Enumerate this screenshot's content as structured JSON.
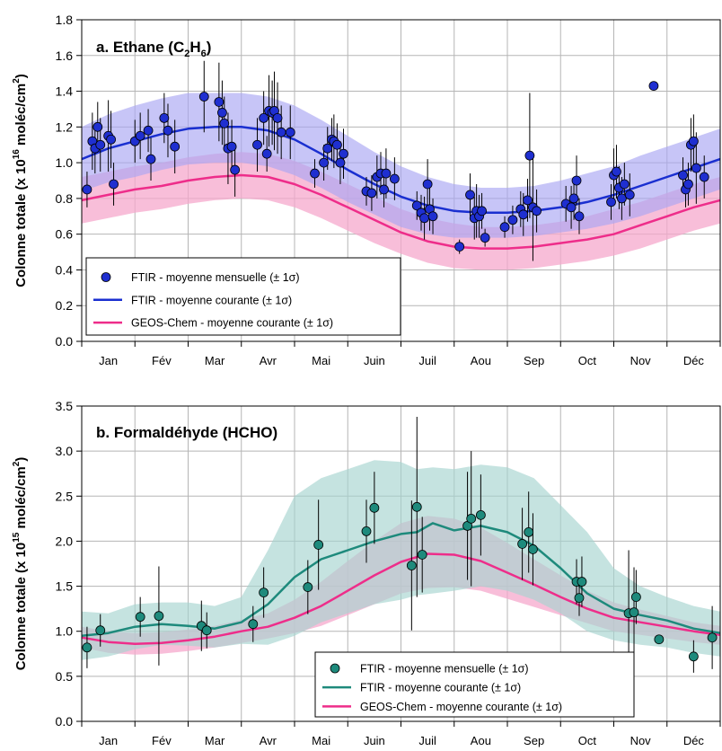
{
  "chart_data": [
    {
      "type": "line",
      "title_main": "a. Ethane (C",
      "title_sub1": "2",
      "title_mid": "H",
      "title_sub2": "6",
      "title_end": ")",
      "ylabel_a": "Colonne totale (x 10",
      "ylabel_exp": "16",
      "ylabel_b": " moléc/cm",
      "ylabel_sq": "2",
      "ylabel_c": ")",
      "ylim": [
        0,
        1.8
      ],
      "yticks": [
        "0.0",
        "0.2",
        "0.4",
        "0.6",
        "0.8",
        "1.0",
        "1.2",
        "1.4",
        "1.6",
        "1.8"
      ],
      "ytick_values": [
        0,
        0.2,
        0.4,
        0.6,
        0.8,
        1.0,
        1.2,
        1.4,
        1.6,
        1.8
      ],
      "months": [
        "Jan",
        "Fév",
        "Mar",
        "Avr",
        "Mai",
        "Juin",
        "Juil",
        "Aou",
        "Sep",
        "Oct",
        "Nov",
        "Déc"
      ],
      "legend_position": "bottom-left",
      "legend": {
        "points": "FTIR - moyenne mensuelle (± 1σ)",
        "ftir_line": "FTIR - moyenne courante (± 1σ)",
        "geos_line": "GEOS-Chem - moyenne courante (± 1σ)"
      },
      "colors": {
        "points": "#1f2fd0",
        "ftir_line": "#1a2fd0",
        "ftir_band": "#a9a6f2",
        "geos_line": "#ee2d8a",
        "geos_band": "#f6a8cc"
      },
      "ftir_mean": {
        "x": [
          0,
          0.5,
          1,
          1.5,
          2,
          2.5,
          3,
          3.5,
          4,
          4.5,
          5,
          5.5,
          6,
          6.5,
          7,
          7.5,
          8,
          8.5,
          9,
          9.5,
          10,
          10.5,
          11,
          11.5,
          12
        ],
        "y": [
          1.02,
          1.08,
          1.12,
          1.16,
          1.19,
          1.2,
          1.2,
          1.18,
          1.13,
          1.05,
          0.96,
          0.88,
          0.81,
          0.76,
          0.73,
          0.72,
          0.72,
          0.73,
          0.75,
          0.78,
          0.82,
          0.87,
          0.92,
          0.97,
          1.02
        ],
        "sd_upper": [
          1.2,
          1.27,
          1.32,
          1.36,
          1.39,
          1.39,
          1.39,
          1.37,
          1.32,
          1.24,
          1.15,
          1.06,
          0.98,
          0.92,
          0.88,
          0.86,
          0.86,
          0.87,
          0.9,
          0.94,
          0.98,
          1.04,
          1.09,
          1.14,
          1.19
        ],
        "sd_lower": [
          0.84,
          0.89,
          0.92,
          0.96,
          0.99,
          1.0,
          1.0,
          0.98,
          0.93,
          0.86,
          0.78,
          0.71,
          0.64,
          0.6,
          0.58,
          0.58,
          0.58,
          0.59,
          0.61,
          0.63,
          0.66,
          0.7,
          0.75,
          0.8,
          0.85
        ]
      },
      "geos_mean": {
        "x": [
          0,
          0.5,
          1,
          1.5,
          2,
          2.5,
          3,
          3.5,
          4,
          4.5,
          5,
          5.5,
          6,
          6.5,
          7,
          7.5,
          8,
          8.5,
          9,
          9.5,
          10,
          10.5,
          11,
          11.5,
          12
        ],
        "y": [
          0.79,
          0.82,
          0.85,
          0.87,
          0.9,
          0.92,
          0.93,
          0.92,
          0.88,
          0.82,
          0.75,
          0.68,
          0.61,
          0.56,
          0.53,
          0.52,
          0.52,
          0.53,
          0.55,
          0.57,
          0.6,
          0.65,
          0.7,
          0.75,
          0.79
        ],
        "sd_upper": [
          0.92,
          0.95,
          0.98,
          1.0,
          1.03,
          1.05,
          1.06,
          1.05,
          1.01,
          0.95,
          0.88,
          0.81,
          0.74,
          0.69,
          0.66,
          0.64,
          0.64,
          0.65,
          0.67,
          0.7,
          0.74,
          0.78,
          0.83,
          0.88,
          0.92
        ],
        "sd_lower": [
          0.66,
          0.69,
          0.72,
          0.74,
          0.77,
          0.79,
          0.8,
          0.79,
          0.75,
          0.69,
          0.62,
          0.55,
          0.49,
          0.44,
          0.41,
          0.4,
          0.4,
          0.41,
          0.43,
          0.45,
          0.48,
          0.52,
          0.57,
          0.62,
          0.66
        ]
      },
      "ftir_monthly": [
        {
          "x": 0.1,
          "y": 0.85,
          "e": 0.1
        },
        {
          "x": 0.2,
          "y": 1.12,
          "e": 0.16
        },
        {
          "x": 0.25,
          "y": 1.08,
          "e": 0.14
        },
        {
          "x": 0.3,
          "y": 1.2,
          "e": 0.14
        },
        {
          "x": 0.35,
          "y": 1.1,
          "e": 0.15
        },
        {
          "x": 0.5,
          "y": 1.15,
          "e": 0.2
        },
        {
          "x": 0.55,
          "y": 1.13,
          "e": 0.16
        },
        {
          "x": 0.6,
          "y": 0.88,
          "e": 0.12
        },
        {
          "x": 1.0,
          "y": 1.12,
          "e": 0.12
        },
        {
          "x": 1.1,
          "y": 1.15,
          "e": 0.13
        },
        {
          "x": 1.25,
          "y": 1.18,
          "e": 0.12
        },
        {
          "x": 1.3,
          "y": 1.02,
          "e": 0.12
        },
        {
          "x": 1.55,
          "y": 1.25,
          "e": 0.14
        },
        {
          "x": 1.62,
          "y": 1.18,
          "e": 0.15
        },
        {
          "x": 1.75,
          "y": 1.09,
          "e": 0.15
        },
        {
          "x": 2.3,
          "y": 1.37,
          "e": 0.2
        },
        {
          "x": 2.58,
          "y": 1.34,
          "e": 0.22
        },
        {
          "x": 2.64,
          "y": 1.28,
          "e": 0.18
        },
        {
          "x": 2.68,
          "y": 1.22,
          "e": 0.15
        },
        {
          "x": 2.75,
          "y": 1.08,
          "e": 0.2
        },
        {
          "x": 2.82,
          "y": 1.09,
          "e": 0.15
        },
        {
          "x": 2.88,
          "y": 0.96,
          "e": 0.15
        },
        {
          "x": 3.3,
          "y": 1.1,
          "e": 0.15
        },
        {
          "x": 3.42,
          "y": 1.25,
          "e": 0.15
        },
        {
          "x": 3.48,
          "y": 1.05,
          "e": 0.1
        },
        {
          "x": 3.52,
          "y": 1.29,
          "e": 0.2
        },
        {
          "x": 3.58,
          "y": 1.28,
          "e": 0.18
        },
        {
          "x": 3.62,
          "y": 1.29,
          "e": 0.22
        },
        {
          "x": 3.68,
          "y": 1.25,
          "e": 0.2
        },
        {
          "x": 3.75,
          "y": 1.17,
          "e": 0.15
        },
        {
          "x": 3.92,
          "y": 1.17,
          "e": 0.15
        },
        {
          "x": 4.38,
          "y": 0.94,
          "e": 0.08
        },
        {
          "x": 4.55,
          "y": 1.0,
          "e": 0.1
        },
        {
          "x": 4.62,
          "y": 1.08,
          "e": 0.12
        },
        {
          "x": 4.7,
          "y": 1.13,
          "e": 0.12
        },
        {
          "x": 4.74,
          "y": 1.12,
          "e": 0.15
        },
        {
          "x": 4.8,
          "y": 1.1,
          "e": 0.12
        },
        {
          "x": 4.86,
          "y": 1.0,
          "e": 0.12
        },
        {
          "x": 4.92,
          "y": 1.05,
          "e": 0.14
        },
        {
          "x": 5.35,
          "y": 0.84,
          "e": 0.08
        },
        {
          "x": 5.45,
          "y": 0.83,
          "e": 0.1
        },
        {
          "x": 5.55,
          "y": 0.92,
          "e": 0.12
        },
        {
          "x": 5.62,
          "y": 0.94,
          "e": 0.12
        },
        {
          "x": 5.68,
          "y": 0.85,
          "e": 0.1
        },
        {
          "x": 5.72,
          "y": 0.94,
          "e": 0.14
        },
        {
          "x": 5.88,
          "y": 0.91,
          "e": 0.12
        },
        {
          "x": 6.3,
          "y": 0.76,
          "e": 0.08
        },
        {
          "x": 6.38,
          "y": 0.72,
          "e": 0.1
        },
        {
          "x": 6.44,
          "y": 0.69,
          "e": 0.12
        },
        {
          "x": 6.5,
          "y": 0.88,
          "e": 0.14
        },
        {
          "x": 6.54,
          "y": 0.74,
          "e": 0.12
        },
        {
          "x": 6.6,
          "y": 0.7,
          "e": 0.1
        },
        {
          "x": 7.1,
          "y": 0.53,
          "e": 0.04
        },
        {
          "x": 7.3,
          "y": 0.82,
          "e": 0.12
        },
        {
          "x": 7.38,
          "y": 0.69,
          "e": 0.12
        },
        {
          "x": 7.42,
          "y": 0.73,
          "e": 0.15
        },
        {
          "x": 7.47,
          "y": 0.7,
          "e": 0.12
        },
        {
          "x": 7.52,
          "y": 0.73,
          "e": 0.1
        },
        {
          "x": 7.58,
          "y": 0.58,
          "e": 0.05
        },
        {
          "x": 7.95,
          "y": 0.64,
          "e": 0.06
        },
        {
          "x": 8.1,
          "y": 0.68,
          "e": 0.08
        },
        {
          "x": 8.25,
          "y": 0.74,
          "e": 0.1
        },
        {
          "x": 8.3,
          "y": 0.71,
          "e": 0.12
        },
        {
          "x": 8.38,
          "y": 0.79,
          "e": 0.12
        },
        {
          "x": 8.42,
          "y": 1.04,
          "e": 0.35
        },
        {
          "x": 8.48,
          "y": 0.75,
          "e": 0.3
        },
        {
          "x": 8.55,
          "y": 0.73,
          "e": 0.12
        },
        {
          "x": 9.1,
          "y": 0.77,
          "e": 0.1
        },
        {
          "x": 9.2,
          "y": 0.75,
          "e": 0.12
        },
        {
          "x": 9.25,
          "y": 0.8,
          "e": 0.12
        },
        {
          "x": 9.3,
          "y": 0.9,
          "e": 0.14
        },
        {
          "x": 9.35,
          "y": 0.7,
          "e": 0.1
        },
        {
          "x": 9.95,
          "y": 0.78,
          "e": 0.1
        },
        {
          "x": 10.0,
          "y": 0.93,
          "e": 0.15
        },
        {
          "x": 10.05,
          "y": 0.95,
          "e": 0.15
        },
        {
          "x": 10.1,
          "y": 0.86,
          "e": 0.12
        },
        {
          "x": 10.15,
          "y": 0.8,
          "e": 0.12
        },
        {
          "x": 10.2,
          "y": 0.88,
          "e": 0.12
        },
        {
          "x": 10.3,
          "y": 0.82,
          "e": 0.12
        },
        {
          "x": 10.75,
          "y": 1.43,
          "e": 0.0
        },
        {
          "x": 11.3,
          "y": 0.93,
          "e": 0.1
        },
        {
          "x": 11.35,
          "y": 0.85,
          "e": 0.1
        },
        {
          "x": 11.4,
          "y": 0.88,
          "e": 0.12
        },
        {
          "x": 11.45,
          "y": 1.1,
          "e": 0.15
        },
        {
          "x": 11.5,
          "y": 1.12,
          "e": 0.15
        },
        {
          "x": 11.55,
          "y": 0.97,
          "e": 0.2
        },
        {
          "x": 11.7,
          "y": 0.92,
          "e": 0.12
        }
      ]
    },
    {
      "type": "line",
      "title": "b. Formaldéhyde (HCHO)",
      "ylabel_a": "Colonne totale (x 10",
      "ylabel_exp": "15",
      "ylabel_b": " moléc/cm",
      "ylabel_sq": "2",
      "ylabel_c": ")",
      "ylim": [
        0,
        3.5
      ],
      "yticks": [
        "0.0",
        "0.5",
        "1.0",
        "1.5",
        "2.0",
        "2.5",
        "3.0",
        "3.5"
      ],
      "ytick_values": [
        0,
        0.5,
        1.0,
        1.5,
        2.0,
        2.5,
        3.0,
        3.5
      ],
      "months": [
        "Jan",
        "Fév",
        "Mar",
        "Avr",
        "Mai",
        "Juin",
        "Juil",
        "Aou",
        "Sep",
        "Oct",
        "Nov",
        "Déc"
      ],
      "legend_position": "bottom-right",
      "legend": {
        "points": "FTIR - moyenne mensuelle (± 1σ)",
        "ftir_line": "FTIR - moyenne courante (± 1σ)",
        "geos_line": "GEOS-Chem - moyenne courante (± 1σ)"
      },
      "colors": {
        "points": "#1e8a7c",
        "ftir_line": "#1e8a7c",
        "ftir_band": "#a6d4cf",
        "geos_line": "#ee2d8a",
        "geos_band": "#f6a8cc"
      },
      "ftir_mean": {
        "x": [
          0,
          0.5,
          1,
          1.5,
          2,
          2.5,
          3,
          3.5,
          4,
          4.5,
          5,
          5.5,
          6,
          6.3,
          6.6,
          7,
          7.5,
          8,
          8.5,
          9,
          9.5,
          10,
          10.5,
          11,
          11.5,
          12
        ],
        "y": [
          0.95,
          0.98,
          1.05,
          1.08,
          1.06,
          1.03,
          1.1,
          1.3,
          1.6,
          1.8,
          1.9,
          2.0,
          2.08,
          2.1,
          2.2,
          2.12,
          2.17,
          2.1,
          1.95,
          1.7,
          1.42,
          1.25,
          1.18,
          1.12,
          1.03,
          0.98
        ],
        "sd_upper": [
          1.22,
          1.2,
          1.3,
          1.32,
          1.32,
          1.28,
          1.38,
          1.9,
          2.5,
          2.7,
          2.8,
          2.9,
          2.88,
          2.8,
          2.82,
          2.8,
          2.85,
          2.82,
          2.7,
          2.4,
          2.1,
          1.7,
          1.5,
          1.38,
          1.28,
          1.22
        ],
        "sd_lower": [
          0.68,
          0.72,
          0.8,
          0.85,
          0.84,
          0.82,
          0.86,
          0.85,
          0.95,
          1.1,
          1.2,
          1.3,
          1.35,
          1.4,
          1.42,
          1.45,
          1.5,
          1.45,
          1.35,
          1.2,
          1.0,
          0.9,
          0.85,
          0.82,
          0.76,
          0.72
        ]
      },
      "geos_mean": {
        "x": [
          0,
          0.5,
          1,
          1.5,
          2,
          2.5,
          3,
          3.5,
          4,
          4.5,
          5,
          5.5,
          6,
          6.5,
          7,
          7.5,
          8,
          8.5,
          9,
          9.5,
          10,
          10.5,
          11,
          11.5,
          12
        ],
        "y": [
          0.93,
          0.88,
          0.86,
          0.87,
          0.9,
          0.94,
          1.0,
          1.05,
          1.15,
          1.28,
          1.45,
          1.62,
          1.77,
          1.86,
          1.85,
          1.78,
          1.65,
          1.52,
          1.38,
          1.25,
          1.15,
          1.1,
          1.05,
          1.0,
          0.96
        ],
        "sd_upper": [
          1.05,
          1.0,
          0.98,
          0.99,
          1.02,
          1.06,
          1.13,
          1.2,
          1.35,
          1.55,
          1.78,
          2.0,
          2.2,
          2.28,
          2.25,
          2.15,
          1.98,
          1.8,
          1.62,
          1.45,
          1.32,
          1.24,
          1.17,
          1.1,
          1.06
        ],
        "sd_lower": [
          0.82,
          0.76,
          0.74,
          0.75,
          0.78,
          0.82,
          0.87,
          0.92,
          0.98,
          1.06,
          1.18,
          1.3,
          1.42,
          1.48,
          1.49,
          1.45,
          1.36,
          1.27,
          1.18,
          1.09,
          1.0,
          0.96,
          0.92,
          0.88,
          0.85
        ]
      },
      "ftir_monthly": [
        {
          "x": 0.1,
          "y": 0.82,
          "e": 0.23
        },
        {
          "x": 0.35,
          "y": 1.01,
          "e": 0.18
        },
        {
          "x": 1.1,
          "y": 1.16,
          "e": 0.22
        },
        {
          "x": 1.45,
          "y": 1.17,
          "e": 0.55
        },
        {
          "x": 2.25,
          "y": 1.06,
          "e": 0.28
        },
        {
          "x": 2.35,
          "y": 1.01,
          "e": 0.2
        },
        {
          "x": 3.22,
          "y": 1.08,
          "e": 0.2
        },
        {
          "x": 3.42,
          "y": 1.43,
          "e": 0.28
        },
        {
          "x": 4.25,
          "y": 1.49,
          "e": 0.3
        },
        {
          "x": 4.45,
          "y": 1.96,
          "e": 0.5
        },
        {
          "x": 5.35,
          "y": 2.11,
          "e": 0.35
        },
        {
          "x": 5.5,
          "y": 2.37,
          "e": 0.4
        },
        {
          "x": 6.2,
          "y": 1.73,
          "e": 0.72
        },
        {
          "x": 6.3,
          "y": 2.38,
          "e": 1.0
        },
        {
          "x": 6.4,
          "y": 1.85,
          "e": 0.42
        },
        {
          "x": 7.25,
          "y": 2.17,
          "e": 0.6
        },
        {
          "x": 7.32,
          "y": 2.25,
          "e": 0.75
        },
        {
          "x": 7.5,
          "y": 2.29,
          "e": 0.45
        },
        {
          "x": 8.28,
          "y": 1.97,
          "e": 0.4
        },
        {
          "x": 8.4,
          "y": 2.1,
          "e": 0.45
        },
        {
          "x": 8.48,
          "y": 1.91,
          "e": 0.4
        },
        {
          "x": 9.3,
          "y": 1.55,
          "e": 0.25
        },
        {
          "x": 9.35,
          "y": 1.37,
          "e": 0.2
        },
        {
          "x": 9.4,
          "y": 1.55,
          "e": 0.28
        },
        {
          "x": 10.28,
          "y": 1.2,
          "e": 0.7
        },
        {
          "x": 10.38,
          "y": 1.21,
          "e": 0.5
        },
        {
          "x": 10.42,
          "y": 1.38,
          "e": 0.3
        },
        {
          "x": 10.85,
          "y": 0.91,
          "e": 0.0
        },
        {
          "x": 11.5,
          "y": 0.72,
          "e": 0.18
        },
        {
          "x": 11.85,
          "y": 0.93,
          "e": 0.35
        }
      ]
    }
  ]
}
